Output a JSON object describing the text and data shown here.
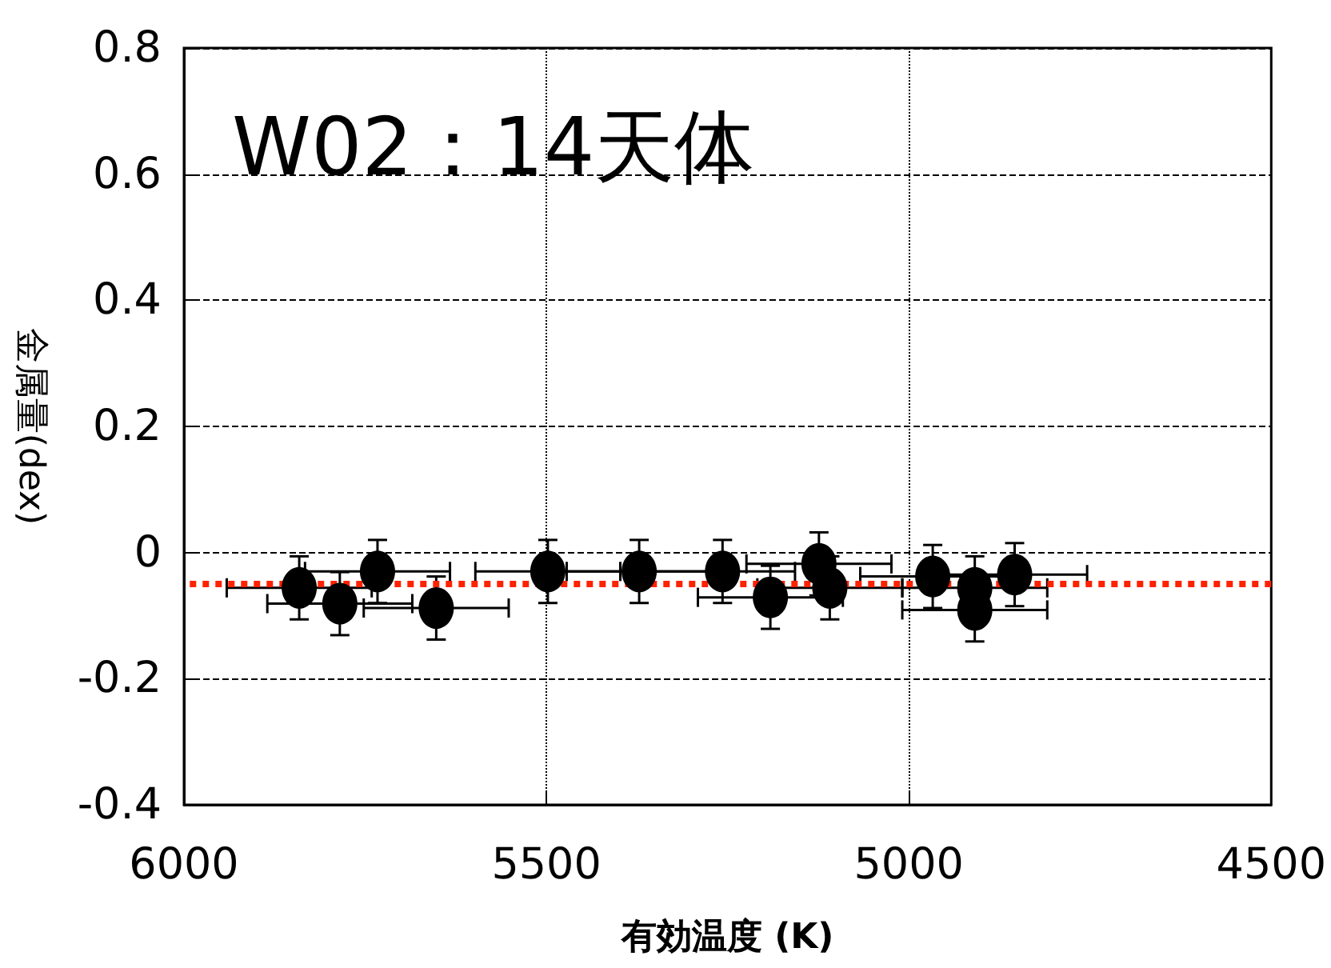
{
  "chart_data": {
    "type": "scatter",
    "title": "W02：14天体",
    "xlabel": "有効温度 (K)",
    "ylabel": "金属量(dex)",
    "x": [
      5841,
      5785,
      5733,
      5652,
      5498,
      5372,
      5257,
      5191,
      5124,
      5109,
      4967,
      4909,
      4909,
      4854
    ],
    "series": [
      {
        "color": "#000000",
        "values": [
          -0.056,
          -0.081,
          -0.03,
          -0.088,
          -0.03,
          -0.03,
          -0.03,
          -0.071,
          -0.018,
          -0.056,
          -0.038,
          -0.056,
          -0.091,
          -0.035
        ],
        "errors": [
          0.05,
          0.05,
          0.05,
          0.05,
          0.05,
          0.05,
          0.05,
          0.05,
          0.05,
          0.05,
          0.05,
          0.05,
          0.05,
          0.05
        ],
        "xerrors": [
          100,
          100,
          100,
          100,
          100,
          100,
          100,
          100,
          100,
          100,
          100,
          100,
          100,
          100
        ]
      }
    ],
    "xlim": [
      6000,
      4500
    ],
    "xticks": [
      6000,
      5500,
      5000,
      4500
    ],
    "ylim": [
      -0.4,
      0.8
    ],
    "yticks": [
      -0.4,
      -0.2,
      0,
      0.2,
      0.4,
      0.6,
      0.8
    ],
    "ref_lines": [
      {
        "axis": "y",
        "value": -0.05,
        "color": "#ff2200",
        "line_style": "dotted"
      }
    ],
    "grid": true,
    "marker": "circle"
  }
}
